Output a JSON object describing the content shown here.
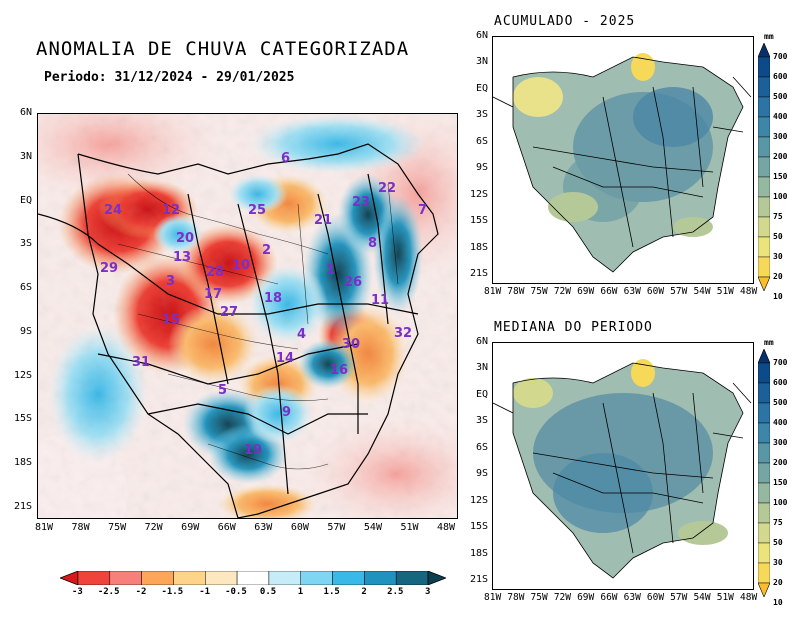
{
  "main": {
    "title": "ANOMALIA DE CHUVA CATEGORIZADA",
    "subtitle": "Periodo: 31/12/2024 - 29/01/2025",
    "lat_ticks": [
      "6N",
      "3N",
      "EQ",
      "3S",
      "6S",
      "9S",
      "12S",
      "15S",
      "18S",
      "21S"
    ],
    "lon_ticks": [
      "81W",
      "78W",
      "75W",
      "72W",
      "69W",
      "66W",
      "63W",
      "60W",
      "57W",
      "54W",
      "51W",
      "48W"
    ],
    "colorbar": {
      "labels": [
        "-3",
        "-2.5",
        "-2",
        "-1.5",
        "-1",
        "-0.5",
        "0.5",
        "1",
        "1.5",
        "2",
        "2.5",
        "3"
      ],
      "colors": [
        "#d7191c",
        "#f0433b",
        "#f7807a",
        "#fda65a",
        "#fed48a",
        "#fde7c0",
        "#ffffff",
        "#c6ecf7",
        "#7fd6f2",
        "#38b9e8",
        "#1f93bd",
        "#16667f",
        "#0c3e4f"
      ]
    },
    "regions": [
      "24",
      "12",
      "25",
      "21",
      "23",
      "22",
      "6",
      "7",
      "8",
      "1",
      "26",
      "11",
      "29",
      "13",
      "3",
      "2",
      "10",
      "28",
      "15",
      "27",
      "5",
      "14",
      "4",
      "30",
      "32",
      "31",
      "16",
      "9",
      "19",
      "20",
      "17",
      "18"
    ]
  },
  "acumulado": {
    "title": "ACUMULADO - 2025"
  },
  "mediana": {
    "title": "MEDIANA DO PERIODO"
  },
  "small_lat_ticks": [
    "6N",
    "3N",
    "EQ",
    "3S",
    "6S",
    "9S",
    "12S",
    "15S",
    "18S",
    "21S"
  ],
  "small_lon_ticks": [
    "81W",
    "78W",
    "75W",
    "72W",
    "69W",
    "66W",
    "63W",
    "60W",
    "57W",
    "54W",
    "51W",
    "48W"
  ],
  "precip_scale": {
    "unit": "mm",
    "labels": [
      "700",
      "600",
      "500",
      "400",
      "300",
      "200",
      "150",
      "100",
      "75",
      "50",
      "30",
      "20",
      "10"
    ],
    "colors": [
      "#08306b",
      "#0d4a8a",
      "#1c5f99",
      "#2c74a4",
      "#3d86a8",
      "#5a97a6",
      "#76a6a3",
      "#95b8a0",
      "#b5c998",
      "#d2d98e",
      "#ebe37c",
      "#f7d95a",
      "#fbbd2d"
    ]
  },
  "colors": {
    "land_outside": "#ffffff",
    "map_border": "#000000"
  }
}
